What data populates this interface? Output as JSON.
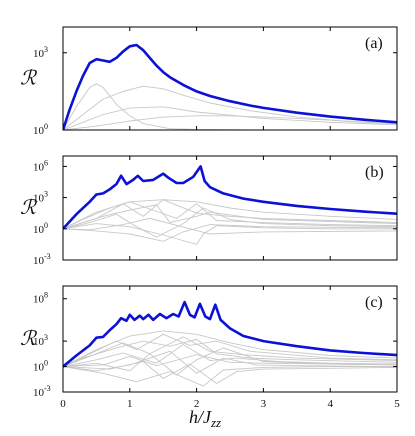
{
  "chart_data": [
    {
      "type": "line",
      "panel_label": "(a)",
      "ylabel": "ℛ",
      "yscale": "log",
      "ytick_labels": [
        {
          "exp": 0,
          "text": "10",
          "sup": "0"
        },
        {
          "exp": 3,
          "text": "10",
          "sup": "3"
        }
      ],
      "xlim": [
        0,
        5
      ],
      "ylim_log10": [
        0,
        4
      ],
      "highlight_color": "#0b12d6",
      "background_color": "#c8c8c8",
      "highlight": {
        "x": [
          0,
          0.1,
          0.2,
          0.3,
          0.4,
          0.5,
          0.6,
          0.7,
          0.8,
          0.9,
          1.0,
          1.1,
          1.2,
          1.3,
          1.4,
          1.5,
          1.6,
          1.8,
          2.0,
          2.2,
          2.5,
          2.8,
          3.0,
          3.5,
          4.0,
          4.5,
          5.0
        ],
        "log10": [
          0,
          0.8,
          1.5,
          2.1,
          2.6,
          2.75,
          2.7,
          2.65,
          2.8,
          3.05,
          3.25,
          3.3,
          3.1,
          2.8,
          2.5,
          2.25,
          2.05,
          1.75,
          1.5,
          1.32,
          1.12,
          0.95,
          0.86,
          0.67,
          0.52,
          0.4,
          0.3
        ]
      },
      "background": [
        {
          "x": [
            0,
            0.2,
            0.4,
            0.5,
            0.6,
            0.8,
            1.0,
            1.2,
            1.6,
            2.0,
            2.5,
            3.0,
            4.0,
            5.0
          ],
          "log10": [
            0,
            0.9,
            1.65,
            1.8,
            1.65,
            1.0,
            0.55,
            0.25,
            0.05,
            0.02,
            0.01,
            0.0,
            0.0,
            0.0
          ]
        },
        {
          "x": [
            0,
            0.3,
            0.6,
            0.9,
            1.2,
            1.5,
            1.8,
            2.2,
            2.8,
            3.5,
            4.2,
            5.0
          ],
          "log10": [
            0,
            0.6,
            1.2,
            1.5,
            1.7,
            1.6,
            1.35,
            1.05,
            0.75,
            0.5,
            0.35,
            0.25
          ]
        },
        {
          "x": [
            0,
            0.5,
            1.0,
            1.5,
            2.0,
            2.5,
            3.0,
            3.5,
            4.0,
            4.5,
            5.0
          ],
          "log10": [
            0,
            0.15,
            0.35,
            0.5,
            0.55,
            0.55,
            0.5,
            0.45,
            0.38,
            0.3,
            0.24
          ]
        },
        {
          "x": [
            0,
            0.3,
            0.6,
            1.0,
            1.5,
            2.0,
            3.0,
            4.0,
            5.0
          ],
          "log10": [
            0,
            0.3,
            0.6,
            0.85,
            0.9,
            0.7,
            0.45,
            0.3,
            0.2
          ]
        }
      ]
    },
    {
      "type": "line",
      "panel_label": "(b)",
      "ylabel": "ℛ",
      "yscale": "log",
      "ytick_labels": [
        {
          "exp": -3,
          "text": "10",
          "sup": "-3"
        },
        {
          "exp": 0,
          "text": "10",
          "sup": "0"
        },
        {
          "exp": 3,
          "text": "10",
          "sup": "3"
        },
        {
          "exp": 6,
          "text": "10",
          "sup": "6"
        }
      ],
      "xlim": [
        0,
        5
      ],
      "ylim_log10": [
        -3,
        7
      ],
      "highlight_color": "#0b12d6",
      "background_color": "#c8c8c8",
      "highlight": {
        "x": [
          0,
          0.2,
          0.4,
          0.5,
          0.6,
          0.7,
          0.8,
          0.87,
          0.95,
          1.05,
          1.12,
          1.2,
          1.35,
          1.5,
          1.58,
          1.7,
          1.8,
          1.95,
          2.06,
          2.12,
          2.2,
          2.4,
          2.7,
          3.0,
          3.5,
          4.0,
          4.5,
          5.0
        ],
        "log10": [
          0,
          1.4,
          2.6,
          3.3,
          3.4,
          3.8,
          4.3,
          5.1,
          4.3,
          4.7,
          5.1,
          4.6,
          4.7,
          5.3,
          4.9,
          4.4,
          4.4,
          5.0,
          6.0,
          4.6,
          4.0,
          3.4,
          2.9,
          2.6,
          2.2,
          1.9,
          1.65,
          1.45
        ]
      },
      "background": [
        {
          "x": [
            0,
            0.5,
            1.0,
            1.5,
            2.0,
            2.5,
            3.0,
            4.0,
            5.0
          ],
          "log10": [
            0,
            1.6,
            2.6,
            2.8,
            2.6,
            2.0,
            1.6,
            1.2,
            0.9
          ]
        },
        {
          "x": [
            0,
            0.5,
            0.9,
            1.2,
            1.5,
            2.0,
            2.5,
            3.0,
            4.0,
            5.0
          ],
          "log10": [
            0,
            1.0,
            2.4,
            1.2,
            2.8,
            1.5,
            1.2,
            1.0,
            0.8,
            0.6
          ]
        },
        {
          "x": [
            0,
            0.4,
            0.8,
            1.1,
            1.4,
            1.8,
            2.1,
            2.5,
            3.0,
            4.0,
            5.0
          ],
          "log10": [
            0,
            0.6,
            1.4,
            0.2,
            -0.8,
            0.5,
            2.0,
            0.9,
            0.5,
            0.3,
            0.2
          ]
        },
        {
          "x": [
            0,
            0.5,
            1.0,
            1.5,
            2.0,
            2.1,
            2.3,
            3.0,
            4.0,
            5.0
          ],
          "log10": [
            0,
            0.5,
            0.2,
            -0.6,
            -1.5,
            -0.5,
            0.3,
            0.1,
            0.0,
            0.0
          ]
        },
        {
          "x": [
            0,
            0.3,
            0.7,
            1.0,
            1.3,
            1.7,
            2.0,
            2.3,
            3.0,
            4.0,
            5.0
          ],
          "log10": [
            0,
            0.9,
            2.0,
            2.6,
            1.9,
            1.0,
            2.4,
            0.8,
            0.6,
            0.4,
            0.3
          ]
        },
        {
          "x": [
            0,
            0.5,
            1.0,
            1.5,
            1.8,
            2.2,
            3.0,
            5.0
          ],
          "log10": [
            0,
            -0.2,
            -0.5,
            -1.2,
            -0.3,
            0.4,
            0.2,
            0.1
          ]
        },
        {
          "x": [
            0,
            0.6,
            1.0,
            1.4,
            1.6,
            2.0,
            2.2,
            3.0,
            5.0
          ],
          "log10": [
            0,
            1.2,
            1.8,
            2.3,
            0.6,
            1.2,
            1.6,
            0.9,
            0.5
          ]
        },
        {
          "x": [
            0,
            0.4,
            0.9,
            1.3,
            1.9,
            2.2,
            3.0,
            5.0
          ],
          "log10": [
            0,
            -0.1,
            0.4,
            1.0,
            0.0,
            -0.5,
            -0.3,
            -0.2
          ]
        }
      ]
    },
    {
      "type": "line",
      "panel_label": "(c)",
      "ylabel": "ℛ",
      "yscale": "log",
      "ytick_labels": [
        {
          "exp": -3,
          "text": "10",
          "sup": "-3"
        },
        {
          "exp": 0,
          "text": "10",
          "sup": "0"
        },
        {
          "exp": 3,
          "text": "10",
          "sup": "3"
        },
        {
          "exp": 8,
          "text": "10",
          "sup": "8"
        }
      ],
      "xtick_labels": [
        "0",
        "1",
        "2",
        "3",
        "4",
        "5"
      ],
      "xlabel": "h/J_zz",
      "xlim": [
        0,
        5
      ],
      "ylim_log10": [
        -3,
        9.5
      ],
      "highlight_color": "#0b12d6",
      "background_color": "#c8c8c8",
      "highlight": {
        "x": [
          0,
          0.2,
          0.4,
          0.5,
          0.6,
          0.7,
          0.8,
          0.87,
          0.95,
          1.0,
          1.07,
          1.15,
          1.2,
          1.28,
          1.35,
          1.45,
          1.55,
          1.65,
          1.73,
          1.82,
          1.9,
          1.97,
          2.05,
          2.13,
          2.2,
          2.28,
          2.36,
          2.5,
          2.7,
          3.0,
          3.5,
          4.0,
          4.5,
          5.0
        ],
        "log10": [
          0,
          1.3,
          2.5,
          3.4,
          3.5,
          4.3,
          5.0,
          5.7,
          5.4,
          6.1,
          5.5,
          6.0,
          5.6,
          6.1,
          5.5,
          6.2,
          5.7,
          6.2,
          5.9,
          7.6,
          6.1,
          5.8,
          7.4,
          5.9,
          5.6,
          7.3,
          5.5,
          4.5,
          3.6,
          3.0,
          2.4,
          1.9,
          1.6,
          1.35
        ]
      },
      "background": [
        {
          "x": [
            0,
            0.5,
            1.0,
            1.5,
            2.0,
            2.5,
            3.0,
            4.0,
            5.0
          ],
          "log10": [
            0,
            2.0,
            3.6,
            4.2,
            3.8,
            2.8,
            2.0,
            1.3,
            1.0
          ]
        },
        {
          "x": [
            0,
            0.4,
            0.9,
            1.3,
            1.8,
            2.2,
            2.7,
            3.5,
            5.0
          ],
          "log10": [
            0,
            1.2,
            2.8,
            1.5,
            3.5,
            1.8,
            1.4,
            1.0,
            0.7
          ]
        },
        {
          "x": [
            0,
            0.5,
            1.0,
            1.3,
            1.7,
            2.0,
            2.4,
            3.0,
            4.0,
            5.0
          ],
          "log10": [
            0,
            0.4,
            -0.5,
            1.5,
            -1.0,
            0.8,
            2.2,
            0.6,
            0.3,
            0.2
          ]
        },
        {
          "x": [
            0,
            0.6,
            1.1,
            1.6,
            2.1,
            2.4,
            3.0,
            4.0,
            5.0
          ],
          "log10": [
            0,
            -0.8,
            -1.8,
            -0.6,
            -2.3,
            -0.4,
            -0.1,
            0.0,
            0.0
          ]
        },
        {
          "x": [
            0,
            0.3,
            0.8,
            1.2,
            1.6,
            2.0,
            2.3,
            2.8,
            3.5,
            5.0
          ],
          "log10": [
            0,
            1.0,
            2.2,
            3.0,
            2.4,
            3.2,
            1.5,
            1.0,
            0.8,
            0.5
          ]
        },
        {
          "x": [
            0,
            0.5,
            0.9,
            1.4,
            1.8,
            2.2,
            2.6,
            3.2,
            4.0,
            5.0
          ],
          "log10": [
            0,
            0.8,
            1.6,
            0.4,
            2.6,
            0.7,
            1.0,
            0.6,
            0.4,
            0.3
          ]
        },
        {
          "x": [
            0,
            0.7,
            1.2,
            1.5,
            1.9,
            2.3,
            2.6,
            3.0,
            4.0,
            5.0
          ],
          "log10": [
            0,
            -0.3,
            0.6,
            -1.4,
            0.3,
            -2.0,
            -0.6,
            -0.3,
            -0.2,
            -0.1
          ]
        },
        {
          "x": [
            0,
            0.4,
            0.8,
            1.1,
            1.5,
            1.9,
            2.3,
            2.8,
            4.0,
            5.0
          ],
          "log10": [
            0,
            1.5,
            3.0,
            2.0,
            3.8,
            2.5,
            3.0,
            1.8,
            1.0,
            0.8
          ]
        },
        {
          "x": [
            0,
            0.6,
            1.0,
            1.4,
            2.0,
            2.5,
            3.0,
            4.0,
            5.0
          ],
          "log10": [
            0,
            0.2,
            1.2,
            0.1,
            1.4,
            0.5,
            0.4,
            0.3,
            0.2
          ]
        },
        {
          "x": [
            0,
            0.5,
            1.0,
            1.6,
            2.0,
            2.4,
            2.9,
            3.5,
            5.0
          ],
          "log10": [
            0,
            -0.5,
            0.2,
            1.8,
            -0.8,
            1.0,
            0.2,
            0.1,
            0.0
          ]
        }
      ]
    }
  ]
}
